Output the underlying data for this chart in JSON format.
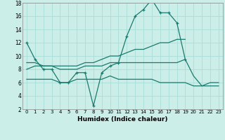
{
  "xlabel": "Humidex (Indice chaleur)",
  "background_color": "#cceee8",
  "grid_color": "#aaddd8",
  "line_color": "#1a7a6e",
  "xlim": [
    -0.5,
    23.5
  ],
  "ylim": [
    2,
    18
  ],
  "xticks": [
    0,
    1,
    2,
    3,
    4,
    5,
    6,
    7,
    8,
    9,
    10,
    11,
    12,
    13,
    14,
    15,
    16,
    17,
    18,
    19,
    20,
    21,
    22,
    23
  ],
  "yticks": [
    2,
    4,
    6,
    8,
    10,
    12,
    14,
    16,
    18
  ],
  "series": [
    {
      "x": [
        0,
        1,
        2,
        3,
        4,
        5,
        6,
        7,
        8,
        9,
        10,
        11,
        12,
        13,
        14,
        15,
        16,
        17,
        18,
        19
      ],
      "y": [
        12,
        9.5,
        8,
        8,
        6,
        6,
        7.5,
        7.5,
        2.5,
        7.5,
        8.5,
        9,
        13,
        16,
        17,
        18.5,
        16.5,
        16.5,
        15,
        9.5
      ],
      "marker": true
    },
    {
      "x": [
        0,
        1,
        2,
        3,
        4,
        5,
        6,
        7,
        8,
        9,
        10,
        11,
        12,
        13,
        14,
        15,
        16,
        17,
        18,
        19,
        20,
        21,
        22,
        23
      ],
      "y": [
        9,
        9,
        8.5,
        8.5,
        8,
        8,
        8,
        8.5,
        8.5,
        8.5,
        9,
        9,
        9,
        9,
        9,
        9,
        9,
        9,
        9,
        9.5,
        7,
        5.5,
        5.5,
        5.5
      ],
      "marker": false
    },
    {
      "x": [
        0,
        1,
        2,
        3,
        4,
        5,
        6,
        7,
        8,
        9,
        10,
        11,
        12,
        13,
        14,
        15,
        16,
        17,
        18,
        19
      ],
      "y": [
        8,
        8.5,
        8.5,
        8.5,
        8.5,
        8.5,
        8.5,
        9,
        9,
        9.5,
        10,
        10,
        10.5,
        11,
        11,
        11.5,
        12,
        12,
        12.5,
        12.5
      ],
      "marker": false
    },
    {
      "x": [
        0,
        1,
        2,
        3,
        4,
        5,
        6,
        7,
        8,
        9,
        10,
        11,
        12,
        13,
        14,
        15,
        16,
        17,
        18,
        19,
        20,
        21,
        22,
        23
      ],
      "y": [
        6.5,
        6.5,
        6.5,
        6.5,
        6,
        6,
        6.5,
        6.5,
        6.5,
        6.5,
        7,
        6.5,
        6.5,
        6.5,
        6.5,
        6.5,
        6,
        6,
        6,
        6,
        5.5,
        5.5,
        6,
        6
      ],
      "marker": false
    }
  ]
}
